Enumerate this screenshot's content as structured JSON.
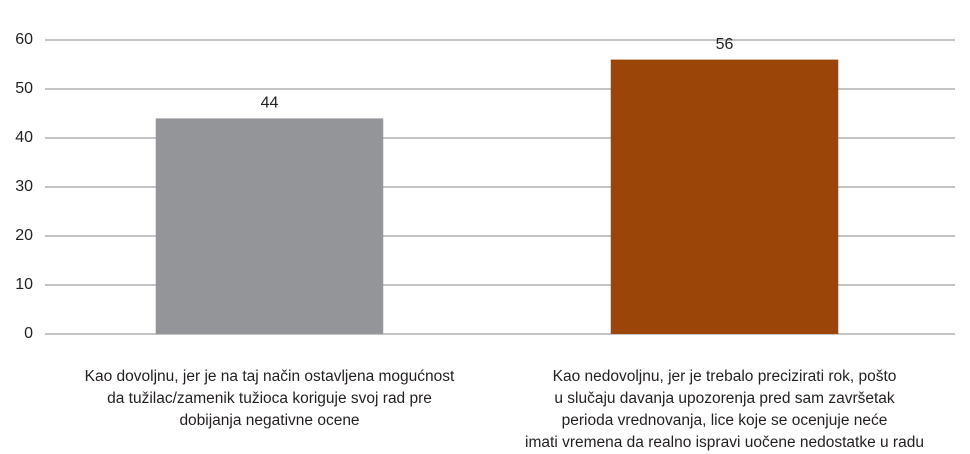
{
  "chart_data": {
    "type": "bar",
    "categories": [
      "Kao dovoljnu, jer je na taj način ostavljena mogućnost\nda tužilac/zamenik tužioca koriguje svoj rad pre\ndobijanja negativne ocene",
      "Kao nedovoljnu, jer je trebalo precizirati rok, pošto\nu slučaju davanja upozorenja pred sam završetak\nperioda vrednovanja, lice koje se ocenjuje neće\nimati vremena da realno ispravi uočene nedostatke u radu"
    ],
    "values": [
      44,
      56
    ],
    "colors": [
      "#939598",
      "#9c4509"
    ],
    "ylim": [
      0,
      60
    ],
    "yticks": [
      0,
      10,
      20,
      30,
      40,
      50,
      60
    ],
    "grid": true
  }
}
